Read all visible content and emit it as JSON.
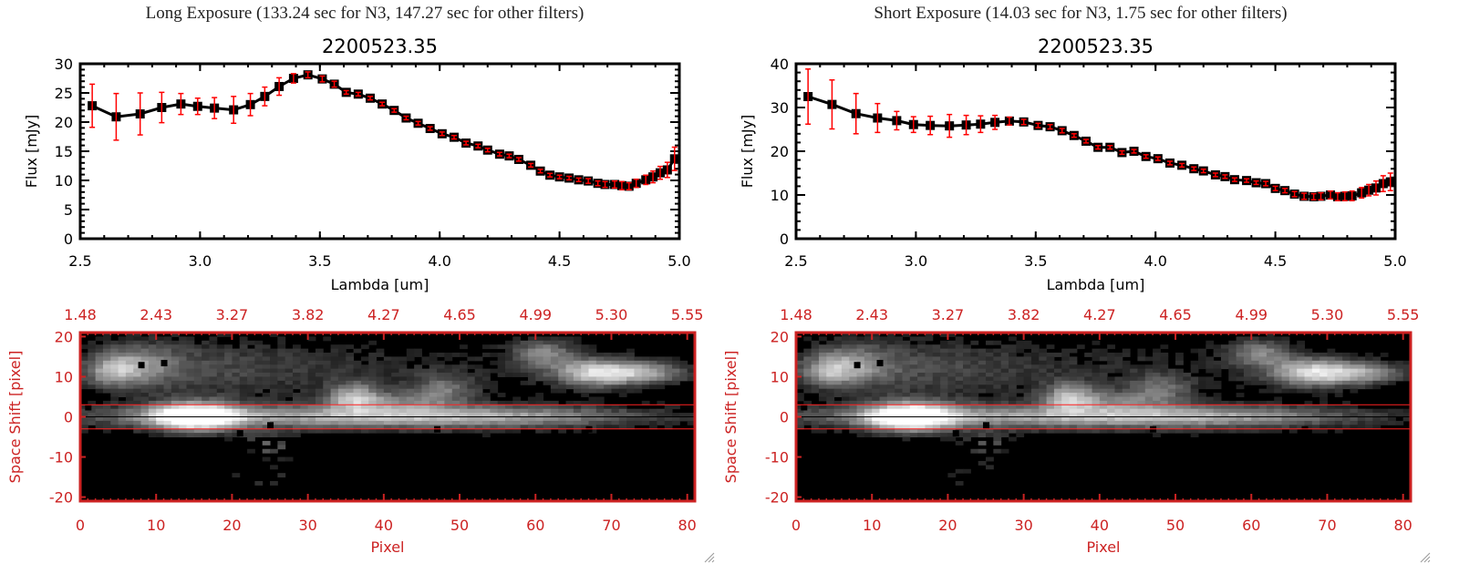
{
  "panels": [
    {
      "id": "long",
      "exposure_title": "Long Exposure (133.24 sec for N3, 147.27 sec for other filters)",
      "colors": {
        "axis": "#000000",
        "errorbar": "#ff0000",
        "marker": "#000000",
        "image_axis": "#cc2222",
        "aperture_line": "#ff2020"
      },
      "spectrum": {
        "type": "line",
        "title": "2200523.35",
        "xlabel": "Lambda [um]",
        "ylabel": "Flux [mJy]",
        "xlim": [
          2.5,
          5.0
        ],
        "ylim": [
          0,
          30
        ],
        "xticks": [
          "2.5",
          "3.0",
          "3.5",
          "4.0",
          "4.5",
          "5.0"
        ],
        "xtick_values": [
          2.5,
          3.0,
          3.5,
          4.0,
          4.5,
          5.0
        ],
        "yticks": [
          "0",
          "5",
          "10",
          "15",
          "20",
          "25",
          "30"
        ],
        "ytick_values": [
          0,
          5,
          10,
          15,
          20,
          25,
          30
        ],
        "x": [
          2.55,
          2.65,
          2.75,
          2.84,
          2.92,
          2.99,
          3.06,
          3.14,
          3.21,
          3.27,
          3.33,
          3.39,
          3.45,
          3.51,
          3.56,
          3.61,
          3.66,
          3.71,
          3.76,
          3.81,
          3.86,
          3.91,
          3.96,
          4.01,
          4.06,
          4.11,
          4.16,
          4.2,
          4.25,
          4.29,
          4.33,
          4.38,
          4.42,
          4.46,
          4.5,
          4.54,
          4.58,
          4.62,
          4.66,
          4.69,
          4.73,
          4.76,
          4.79,
          4.82,
          4.86,
          4.89,
          4.92,
          4.95,
          4.98
        ],
        "values": [
          22.8,
          20.9,
          21.4,
          22.5,
          23.1,
          22.7,
          22.4,
          22.1,
          23.0,
          24.4,
          26.1,
          27.5,
          28.1,
          27.4,
          26.5,
          25.1,
          24.8,
          24.1,
          23.1,
          22.0,
          20.7,
          19.8,
          18.9,
          18.0,
          17.4,
          16.4,
          15.9,
          15.2,
          14.5,
          14.2,
          13.6,
          12.6,
          11.6,
          10.9,
          10.6,
          10.4,
          10.1,
          9.9,
          9.5,
          9.3,
          9.3,
          9.1,
          9.0,
          9.5,
          10.1,
          10.6,
          11.3,
          11.8,
          13.7
        ],
        "errors": [
          3.7,
          4.0,
          3.6,
          2.6,
          1.8,
          1.4,
          1.8,
          2.3,
          1.9,
          1.6,
          1.5,
          0.8,
          0.5,
          0.5,
          0.5,
          0.3,
          0.3,
          0.3,
          0.3,
          0.3,
          0.3,
          0.3,
          0.3,
          0.3,
          0.3,
          0.3,
          0.3,
          0.3,
          0.3,
          0.3,
          0.3,
          0.3,
          0.3,
          0.3,
          0.3,
          0.3,
          0.3,
          0.4,
          0.4,
          0.5,
          0.6,
          0.7,
          0.6,
          0.7,
          0.8,
          1.0,
          1.1,
          1.3,
          2.0
        ]
      },
      "image": {
        "type": "heatmap",
        "xlabel": "Pixel",
        "ylabel": "Space Shift [pixel]",
        "xlim": [
          0,
          81
        ],
        "ylim": [
          -21,
          21
        ],
        "xticks": [
          "0",
          "10",
          "20",
          "30",
          "40",
          "50",
          "60",
          "70",
          "80"
        ],
        "xtick_values": [
          0,
          10,
          20,
          30,
          40,
          50,
          60,
          70,
          80
        ],
        "yticks": [
          "-20",
          "-10",
          "0",
          "10",
          "20"
        ],
        "ytick_values": [
          -20,
          -10,
          0,
          10,
          20
        ],
        "top_ticks": [
          "1.48",
          "2.43",
          "3.27",
          "3.82",
          "4.27",
          "4.65",
          "4.99",
          "5.30",
          "5.55"
        ],
        "aperture": [
          -3,
          3
        ],
        "center_line": 0
      }
    },
    {
      "id": "short",
      "exposure_title": "Short Exposure (14.03 sec for N3, 1.75 sec for other filters)",
      "colors": {
        "axis": "#000000",
        "errorbar": "#ff0000",
        "marker": "#000000",
        "image_axis": "#cc2222",
        "aperture_line": "#ff2020"
      },
      "spectrum": {
        "type": "line",
        "title": "2200523.35",
        "xlabel": "Lambda [um]",
        "ylabel": "Flux [mJy]",
        "xlim": [
          2.5,
          5.0
        ],
        "ylim": [
          0,
          40
        ],
        "xticks": [
          "2.5",
          "3.0",
          "3.5",
          "4.0",
          "4.5",
          "5.0"
        ],
        "xtick_values": [
          2.5,
          3.0,
          3.5,
          4.0,
          4.5,
          5.0
        ],
        "yticks": [
          "0",
          "10",
          "20",
          "30",
          "40"
        ],
        "ytick_values": [
          0,
          10,
          20,
          30,
          40
        ],
        "x": [
          2.55,
          2.65,
          2.75,
          2.84,
          2.92,
          2.99,
          3.06,
          3.14,
          3.21,
          3.27,
          3.33,
          3.39,
          3.45,
          3.51,
          3.56,
          3.61,
          3.66,
          3.71,
          3.76,
          3.81,
          3.86,
          3.91,
          3.96,
          4.01,
          4.06,
          4.11,
          4.16,
          4.2,
          4.25,
          4.29,
          4.33,
          4.38,
          4.42,
          4.46,
          4.5,
          4.54,
          4.58,
          4.62,
          4.66,
          4.69,
          4.73,
          4.76,
          4.79,
          4.82,
          4.86,
          4.89,
          4.92,
          4.95,
          4.98
        ],
        "values": [
          32.5,
          30.7,
          28.6,
          27.6,
          27.0,
          26.1,
          25.9,
          25.8,
          26.0,
          26.2,
          26.6,
          26.9,
          26.7,
          25.9,
          25.6,
          24.7,
          23.6,
          22.3,
          20.9,
          20.9,
          19.7,
          20.0,
          18.8,
          18.3,
          17.3,
          16.8,
          16.0,
          15.5,
          14.6,
          14.2,
          13.5,
          13.3,
          12.8,
          12.6,
          11.5,
          11.0,
          10.2,
          9.7,
          9.6,
          9.7,
          10.0,
          9.6,
          9.7,
          9.8,
          10.5,
          11.1,
          11.6,
          12.6,
          13.0
        ],
        "errors": [
          6.3,
          5.6,
          4.6,
          3.3,
          2.1,
          1.8,
          2.1,
          2.6,
          2.2,
          1.9,
          1.6,
          0.9,
          0.6,
          0.5,
          0.5,
          0.5,
          0.4,
          0.4,
          0.4,
          0.4,
          0.4,
          0.4,
          0.4,
          0.4,
          0.4,
          0.4,
          0.4,
          0.4,
          0.4,
          0.4,
          0.4,
          0.4,
          0.4,
          0.5,
          0.5,
          0.5,
          0.6,
          0.7,
          0.7,
          0.8,
          0.9,
          0.9,
          1.0,
          1.1,
          1.2,
          1.3,
          1.6,
          1.8,
          2.0
        ]
      },
      "image": {
        "type": "heatmap",
        "xlabel": "Pixel",
        "ylabel": "Space Shift [pixel]",
        "xlim": [
          0,
          81
        ],
        "ylim": [
          -21,
          21
        ],
        "xticks": [
          "0",
          "10",
          "20",
          "30",
          "40",
          "50",
          "60",
          "70",
          "80"
        ],
        "xtick_values": [
          0,
          10,
          20,
          30,
          40,
          50,
          60,
          70,
          80
        ],
        "yticks": [
          "-20",
          "-10",
          "0",
          "10",
          "20"
        ],
        "ytick_values": [
          -20,
          -10,
          0,
          10,
          20
        ],
        "top_ticks": [
          "1.48",
          "2.43",
          "3.27",
          "3.82",
          "4.27",
          "4.65",
          "4.99",
          "5.30",
          "5.55"
        ],
        "aperture": [
          -3,
          3
        ],
        "center_line": 0
      }
    }
  ],
  "chart_data": [
    {
      "type": "line",
      "title": "2200523.35",
      "subtitle": "Long Exposure (133.24 sec for N3, 147.27 sec for other filters)",
      "xlabel": "Lambda [um]",
      "ylabel": "Flux [mJy]",
      "xlim": [
        2.5,
        5.0
      ],
      "ylim": [
        0,
        30
      ],
      "grid": false,
      "legend": "none",
      "series": [
        {
          "name": "flux",
          "ref": "panels.0.spectrum"
        }
      ]
    },
    {
      "type": "heatmap",
      "xlabel": "Pixel",
      "ylabel": "Space Shift [pixel]",
      "xlim": [
        0,
        81
      ],
      "ylim": [
        -21,
        21
      ],
      "top_axis_ticks": [
        "1.48",
        "2.43",
        "3.27",
        "3.82",
        "4.27",
        "4.65",
        "4.99",
        "5.30",
        "5.55"
      ],
      "aperture_rows": [
        -3,
        3
      ]
    },
    {
      "type": "line",
      "title": "2200523.35",
      "subtitle": "Short Exposure (14.03 sec for N3, 1.75 sec for other filters)",
      "xlabel": "Lambda [um]",
      "ylabel": "Flux [mJy]",
      "xlim": [
        2.5,
        5.0
      ],
      "ylim": [
        0,
        40
      ],
      "grid": false,
      "legend": "none",
      "series": [
        {
          "name": "flux",
          "ref": "panels.1.spectrum"
        }
      ]
    },
    {
      "type": "heatmap",
      "xlabel": "Pixel",
      "ylabel": "Space Shift [pixel]",
      "xlim": [
        0,
        81
      ],
      "ylim": [
        -21,
        21
      ],
      "top_axis_ticks": [
        "1.48",
        "2.43",
        "3.27",
        "3.82",
        "4.27",
        "4.65",
        "4.99",
        "5.30",
        "5.55"
      ],
      "aperture_rows": [
        -3,
        3
      ]
    }
  ]
}
